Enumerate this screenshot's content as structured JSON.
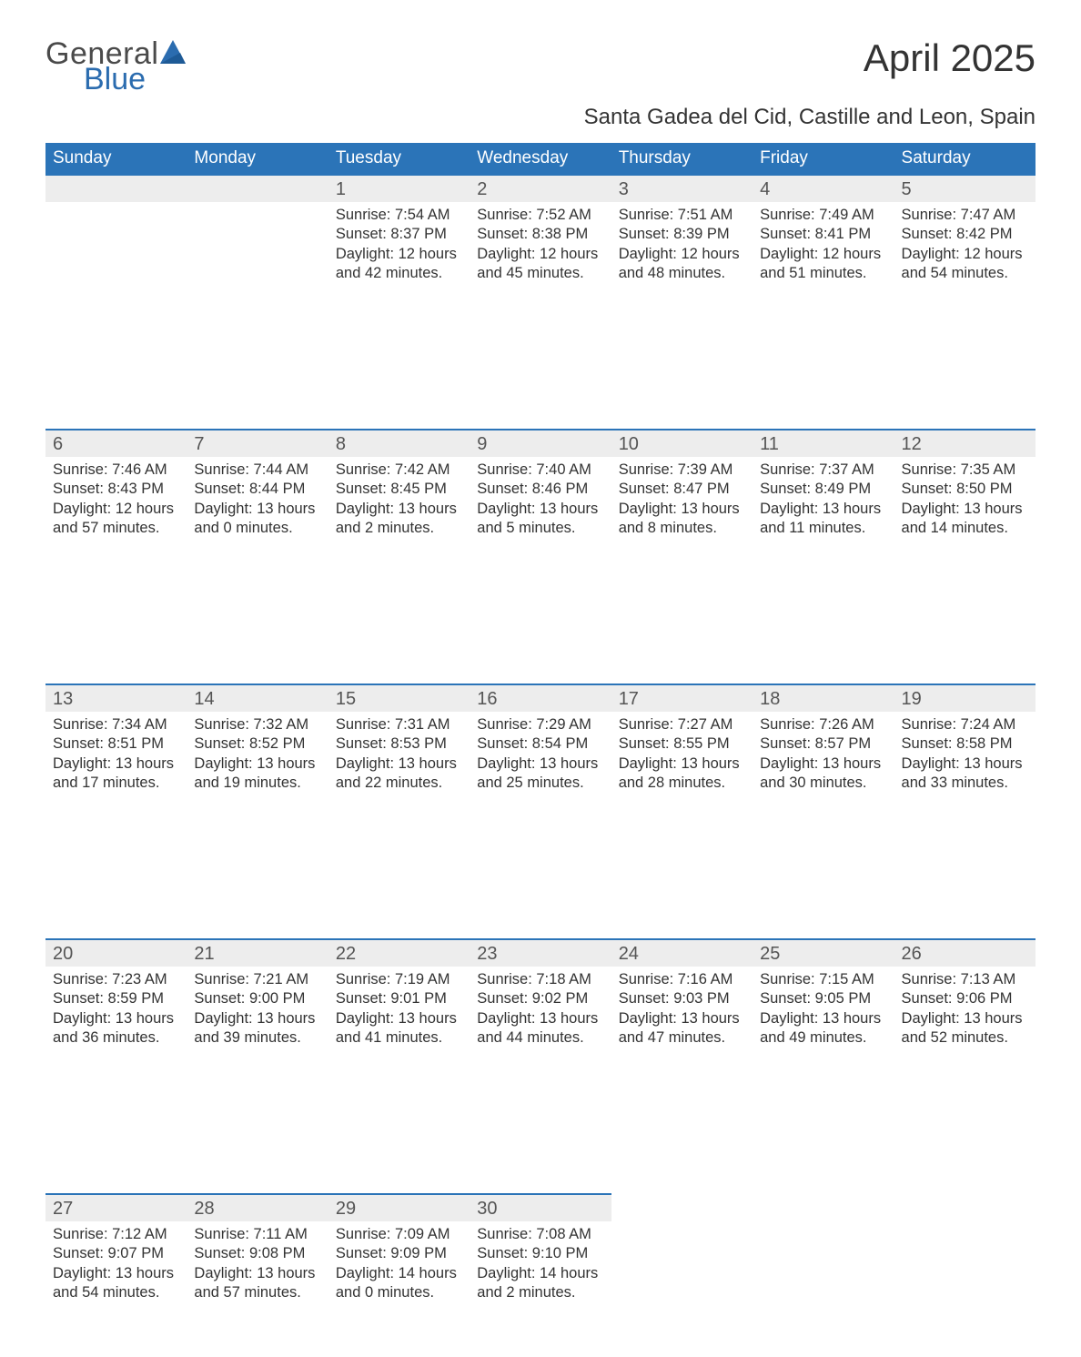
{
  "logo": {
    "text1": "General",
    "text2": "Blue",
    "brand_color": "#2b6caf"
  },
  "title": "April 2025",
  "location": "Santa Gadea del Cid, Castille and Leon, Spain",
  "colors": {
    "header_bg": "#2b74b8",
    "header_text": "#ffffff",
    "daynum_bg": "#ededed",
    "row_border": "#2b74b8",
    "body_text": "#333333",
    "daynum_text": "#555555",
    "page_bg": "#ffffff"
  },
  "fonts": {
    "title_size_pt": 42,
    "location_size_pt": 24,
    "weekday_size_pt": 19,
    "daynum_size_pt": 20,
    "body_size_pt": 16
  },
  "weekday_labels": [
    "Sunday",
    "Monday",
    "Tuesday",
    "Wednesday",
    "Thursday",
    "Friday",
    "Saturday"
  ],
  "weeks": [
    [
      null,
      null,
      {
        "day": "1",
        "sunrise": "Sunrise: 7:54 AM",
        "sunset": "Sunset: 8:37 PM",
        "daylight1": "Daylight: 12 hours",
        "daylight2": "and 42 minutes."
      },
      {
        "day": "2",
        "sunrise": "Sunrise: 7:52 AM",
        "sunset": "Sunset: 8:38 PM",
        "daylight1": "Daylight: 12 hours",
        "daylight2": "and 45 minutes."
      },
      {
        "day": "3",
        "sunrise": "Sunrise: 7:51 AM",
        "sunset": "Sunset: 8:39 PM",
        "daylight1": "Daylight: 12 hours",
        "daylight2": "and 48 minutes."
      },
      {
        "day": "4",
        "sunrise": "Sunrise: 7:49 AM",
        "sunset": "Sunset: 8:41 PM",
        "daylight1": "Daylight: 12 hours",
        "daylight2": "and 51 minutes."
      },
      {
        "day": "5",
        "sunrise": "Sunrise: 7:47 AM",
        "sunset": "Sunset: 8:42 PM",
        "daylight1": "Daylight: 12 hours",
        "daylight2": "and 54 minutes."
      }
    ],
    [
      {
        "day": "6",
        "sunrise": "Sunrise: 7:46 AM",
        "sunset": "Sunset: 8:43 PM",
        "daylight1": "Daylight: 12 hours",
        "daylight2": "and 57 minutes."
      },
      {
        "day": "7",
        "sunrise": "Sunrise: 7:44 AM",
        "sunset": "Sunset: 8:44 PM",
        "daylight1": "Daylight: 13 hours",
        "daylight2": "and 0 minutes."
      },
      {
        "day": "8",
        "sunrise": "Sunrise: 7:42 AM",
        "sunset": "Sunset: 8:45 PM",
        "daylight1": "Daylight: 13 hours",
        "daylight2": "and 2 minutes."
      },
      {
        "day": "9",
        "sunrise": "Sunrise: 7:40 AM",
        "sunset": "Sunset: 8:46 PM",
        "daylight1": "Daylight: 13 hours",
        "daylight2": "and 5 minutes."
      },
      {
        "day": "10",
        "sunrise": "Sunrise: 7:39 AM",
        "sunset": "Sunset: 8:47 PM",
        "daylight1": "Daylight: 13 hours",
        "daylight2": "and 8 minutes."
      },
      {
        "day": "11",
        "sunrise": "Sunrise: 7:37 AM",
        "sunset": "Sunset: 8:49 PM",
        "daylight1": "Daylight: 13 hours",
        "daylight2": "and 11 minutes."
      },
      {
        "day": "12",
        "sunrise": "Sunrise: 7:35 AM",
        "sunset": "Sunset: 8:50 PM",
        "daylight1": "Daylight: 13 hours",
        "daylight2": "and 14 minutes."
      }
    ],
    [
      {
        "day": "13",
        "sunrise": "Sunrise: 7:34 AM",
        "sunset": "Sunset: 8:51 PM",
        "daylight1": "Daylight: 13 hours",
        "daylight2": "and 17 minutes."
      },
      {
        "day": "14",
        "sunrise": "Sunrise: 7:32 AM",
        "sunset": "Sunset: 8:52 PM",
        "daylight1": "Daylight: 13 hours",
        "daylight2": "and 19 minutes."
      },
      {
        "day": "15",
        "sunrise": "Sunrise: 7:31 AM",
        "sunset": "Sunset: 8:53 PM",
        "daylight1": "Daylight: 13 hours",
        "daylight2": "and 22 minutes."
      },
      {
        "day": "16",
        "sunrise": "Sunrise: 7:29 AM",
        "sunset": "Sunset: 8:54 PM",
        "daylight1": "Daylight: 13 hours",
        "daylight2": "and 25 minutes."
      },
      {
        "day": "17",
        "sunrise": "Sunrise: 7:27 AM",
        "sunset": "Sunset: 8:55 PM",
        "daylight1": "Daylight: 13 hours",
        "daylight2": "and 28 minutes."
      },
      {
        "day": "18",
        "sunrise": "Sunrise: 7:26 AM",
        "sunset": "Sunset: 8:57 PM",
        "daylight1": "Daylight: 13 hours",
        "daylight2": "and 30 minutes."
      },
      {
        "day": "19",
        "sunrise": "Sunrise: 7:24 AM",
        "sunset": "Sunset: 8:58 PM",
        "daylight1": "Daylight: 13 hours",
        "daylight2": "and 33 minutes."
      }
    ],
    [
      {
        "day": "20",
        "sunrise": "Sunrise: 7:23 AM",
        "sunset": "Sunset: 8:59 PM",
        "daylight1": "Daylight: 13 hours",
        "daylight2": "and 36 minutes."
      },
      {
        "day": "21",
        "sunrise": "Sunrise: 7:21 AM",
        "sunset": "Sunset: 9:00 PM",
        "daylight1": "Daylight: 13 hours",
        "daylight2": "and 39 minutes."
      },
      {
        "day": "22",
        "sunrise": "Sunrise: 7:19 AM",
        "sunset": "Sunset: 9:01 PM",
        "daylight1": "Daylight: 13 hours",
        "daylight2": "and 41 minutes."
      },
      {
        "day": "23",
        "sunrise": "Sunrise: 7:18 AM",
        "sunset": "Sunset: 9:02 PM",
        "daylight1": "Daylight: 13 hours",
        "daylight2": "and 44 minutes."
      },
      {
        "day": "24",
        "sunrise": "Sunrise: 7:16 AM",
        "sunset": "Sunset: 9:03 PM",
        "daylight1": "Daylight: 13 hours",
        "daylight2": "and 47 minutes."
      },
      {
        "day": "25",
        "sunrise": "Sunrise: 7:15 AM",
        "sunset": "Sunset: 9:05 PM",
        "daylight1": "Daylight: 13 hours",
        "daylight2": "and 49 minutes."
      },
      {
        "day": "26",
        "sunrise": "Sunrise: 7:13 AM",
        "sunset": "Sunset: 9:06 PM",
        "daylight1": "Daylight: 13 hours",
        "daylight2": "and 52 minutes."
      }
    ],
    [
      {
        "day": "27",
        "sunrise": "Sunrise: 7:12 AM",
        "sunset": "Sunset: 9:07 PM",
        "daylight1": "Daylight: 13 hours",
        "daylight2": "and 54 minutes."
      },
      {
        "day": "28",
        "sunrise": "Sunrise: 7:11 AM",
        "sunset": "Sunset: 9:08 PM",
        "daylight1": "Daylight: 13 hours",
        "daylight2": "and 57 minutes."
      },
      {
        "day": "29",
        "sunrise": "Sunrise: 7:09 AM",
        "sunset": "Sunset: 9:09 PM",
        "daylight1": "Daylight: 14 hours",
        "daylight2": "and 0 minutes."
      },
      {
        "day": "30",
        "sunrise": "Sunrise: 7:08 AM",
        "sunset": "Sunset: 9:10 PM",
        "daylight1": "Daylight: 14 hours",
        "daylight2": "and 2 minutes."
      },
      null,
      null,
      null
    ]
  ]
}
